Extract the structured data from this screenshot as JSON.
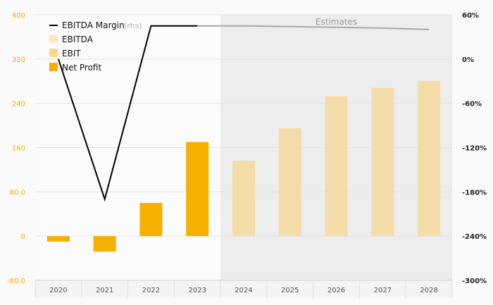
{
  "chart_data": {
    "type": "bar",
    "categories": [
      "2020",
      "2021",
      "2022",
      "2023",
      "2024",
      "2025",
      "2026",
      "2027",
      "2028"
    ],
    "estimate_start_index": 4,
    "estimates_label": "Estimates",
    "y_left": {
      "range": [
        -80,
        400
      ],
      "ticks": [
        -80,
        0,
        80,
        160,
        240,
        320,
        400
      ],
      "tick_labels": [
        "-80.0",
        "0",
        "80.0",
        "160",
        "240",
        "320",
        "400"
      ]
    },
    "y_right": {
      "range": [
        -300,
        60
      ],
      "ticks": [
        -300,
        -240,
        -180,
        -120,
        -60,
        0,
        60
      ],
      "tick_labels": [
        "-300%",
        "-240%",
        "-180%",
        "-120%",
        "-60%",
        "0%",
        "60%"
      ]
    },
    "series": [
      {
        "name": "EBITDA Margin",
        "legend_suffix": "(rhs)",
        "type": "line",
        "axis": "right",
        "values": [
          0,
          -190,
          45,
          45,
          45,
          44,
          43,
          42,
          40
        ],
        "estimate_from_index": 3
      },
      {
        "name": "EBITDA",
        "type": "bar",
        "axis": "left",
        "values": [
          null,
          null,
          null,
          null,
          null,
          null,
          null,
          null,
          null
        ]
      },
      {
        "name": "EBIT",
        "type": "bar",
        "axis": "left",
        "values": [
          null,
          null,
          null,
          null,
          null,
          null,
          null,
          null,
          null
        ]
      },
      {
        "name": "Net Profit",
        "type": "bar",
        "axis": "left",
        "values": [
          -10,
          -28,
          60,
          170,
          136,
          195,
          253,
          268,
          280
        ]
      }
    ],
    "colors": {
      "line_actual": "#000000",
      "line_estimate": "#a8a8a8",
      "ebitda": "#fde9bd",
      "ebit": "#fcd98a",
      "net_profit_actual": "#f5b000",
      "net_profit_estimate": "#f3dca8",
      "estimate_shade": "#ededed",
      "grid": "#e2e2e2"
    },
    "legend_position": "top-left",
    "grid": true
  }
}
